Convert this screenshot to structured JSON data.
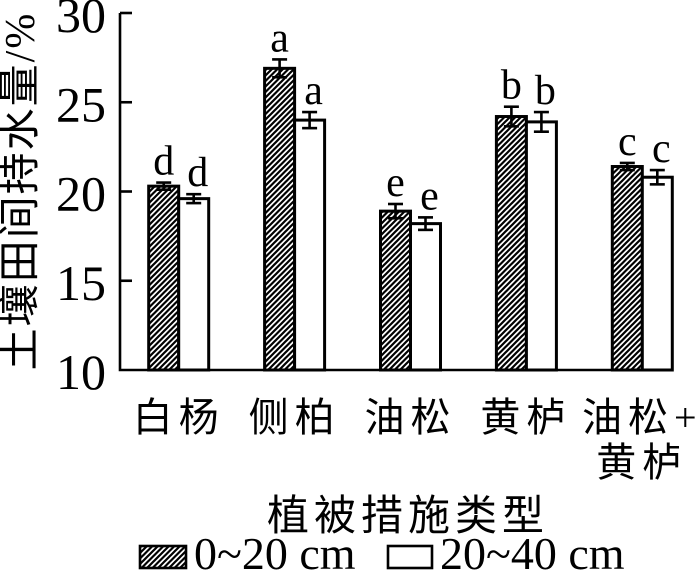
{
  "figure": {
    "background": "#ffffff",
    "foreground": "#000000"
  },
  "chart_data": {
    "type": "bar",
    "title": "",
    "xlabel": "植被措施类型",
    "ylabel": "土壤田间持水量/%",
    "ylim": [
      10,
      30
    ],
    "yticks": [
      10,
      15,
      20,
      25,
      30
    ],
    "grid": false,
    "legend_position": "bottom",
    "categories": [
      "白杨",
      "侧柏",
      "油松",
      "黄栌",
      "油松+黄栌"
    ],
    "category_lines": [
      [
        "白杨"
      ],
      [
        "侧柏"
      ],
      [
        "油松"
      ],
      [
        "黄栌"
      ],
      [
        "油松+",
        "黄栌"
      ]
    ],
    "series": [
      {
        "name": "0~20 cm",
        "fill": "hatched",
        "values": [
          20.3,
          26.9,
          18.9,
          24.2,
          21.4
        ],
        "errors": [
          0.2,
          0.5,
          0.4,
          0.55,
          0.2
        ],
        "letters": [
          "d",
          "a",
          "e",
          "b",
          "c"
        ]
      },
      {
        "name": "20~40 cm",
        "fill": "white",
        "values": [
          19.6,
          24.0,
          18.2,
          23.9,
          20.8
        ],
        "errors": [
          0.25,
          0.45,
          0.35,
          0.55,
          0.4
        ],
        "letters": [
          "d",
          "a",
          "e",
          "b",
          "c"
        ]
      }
    ]
  }
}
